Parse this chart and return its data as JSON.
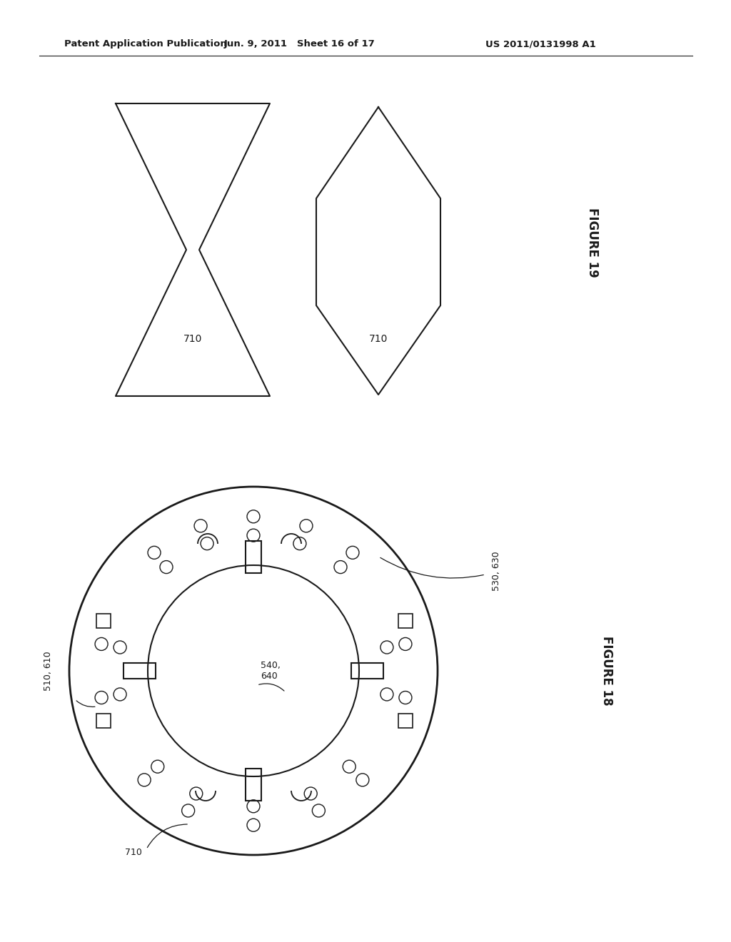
{
  "bg_color": "#ffffff",
  "line_color": "#1a1a1a",
  "header_left": "Patent Application Publication",
  "header_center": "Jun. 9, 2011   Sheet 16 of 17",
  "header_right": "US 2011/0131998 A1",
  "fig19_label": "FIGURE 19",
  "fig18_label": "FIGURE 18",
  "label_710_fig19_left": "710",
  "label_710_fig19_right": "710",
  "label_540_640": "540,\n640",
  "label_510_610": "510, 610",
  "label_530_630": "530, 630",
  "label_710_fig18": "710",
  "line_width": 1.5,
  "font_size_header": 9.5,
  "font_size_label": 9
}
